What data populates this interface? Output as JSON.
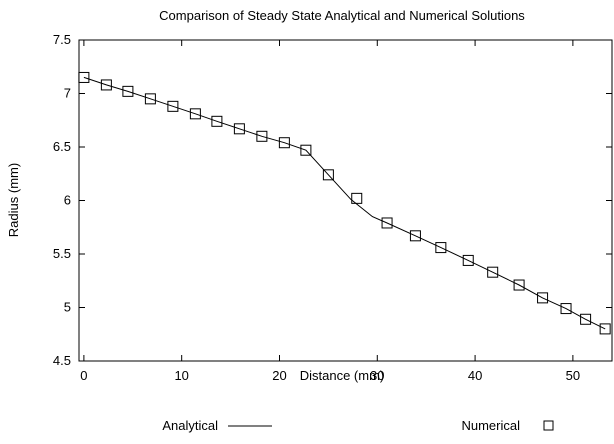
{
  "chart_data": {
    "type": "line",
    "title": "Comparison of Steady State Analytical and Numerical Solutions",
    "xlabel": "Distance (mm)",
    "ylabel": "Radius (mm)",
    "xlim": [
      -0.5,
      54
    ],
    "ylim": [
      4.5,
      7.5
    ],
    "x_ticks": [
      0,
      10,
      20,
      30,
      40,
      50
    ],
    "y_ticks": [
      4.5,
      5,
      5.5,
      6,
      6.5,
      7,
      7.5
    ],
    "grid": false,
    "legend": "bottom",
    "series": [
      {
        "name": "Analytical",
        "style": "line",
        "color": "#000000",
        "x": [
          0,
          2.3,
          4.5,
          6.8,
          9.1,
          11.4,
          13.6,
          15.9,
          18.2,
          20.5,
          22.7,
          25.0,
          27.3,
          29.5,
          31.0,
          33.9,
          36.5,
          39.3,
          41.8,
          44.5,
          46.9,
          49.3,
          51.3,
          53.3
        ],
        "y": [
          7.15,
          7.08,
          7.02,
          6.95,
          6.88,
          6.81,
          6.74,
          6.67,
          6.6,
          6.54,
          6.47,
          6.24,
          6.01,
          5.85,
          5.79,
          5.67,
          5.56,
          5.44,
          5.33,
          5.21,
          5.09,
          4.99,
          4.89,
          4.8
        ]
      },
      {
        "name": "Numerical",
        "style": "markers",
        "marker": "open-square",
        "color": "#000000",
        "x": [
          0,
          2.3,
          4.5,
          6.8,
          9.1,
          11.4,
          13.6,
          15.9,
          18.2,
          20.5,
          22.7,
          25.0,
          27.9,
          31.0,
          33.9,
          36.5,
          39.3,
          41.8,
          44.5,
          46.9,
          49.3,
          51.3,
          53.3
        ],
        "y": [
          7.15,
          7.08,
          7.02,
          6.95,
          6.88,
          6.81,
          6.74,
          6.67,
          6.6,
          6.54,
          6.47,
          6.24,
          6.02,
          5.79,
          5.67,
          5.56,
          5.44,
          5.33,
          5.21,
          5.09,
          4.99,
          4.89,
          4.8
        ]
      }
    ]
  }
}
